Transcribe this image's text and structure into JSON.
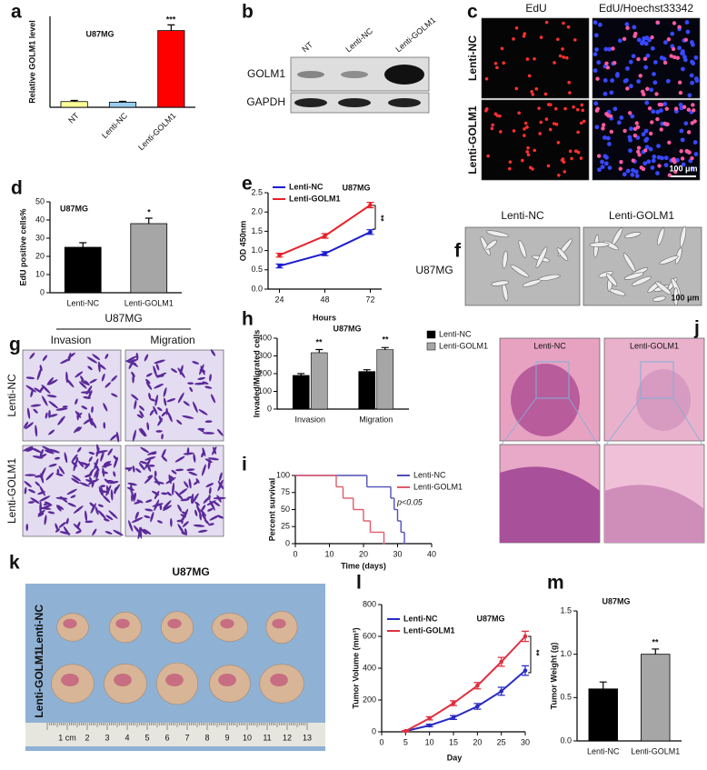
{
  "chart_data": [
    {
      "panel": "a",
      "type": "bar",
      "title": "U87MG",
      "ylabel": "Relative GOLM1 level",
      "categories": [
        "NT",
        "Lenti-NC",
        "Lenti-GOLM1"
      ],
      "values": [
        1.0,
        0.9,
        13.5
      ],
      "errors": [
        0.2,
        0.15,
        1.0
      ],
      "colors": [
        "#ffff99",
        "#99ccee",
        "#ff0000"
      ],
      "ylim": [
        0,
        16
      ],
      "annotations": [
        "***"
      ]
    },
    {
      "panel": "d",
      "type": "bar",
      "title": "U87MG",
      "ylabel": "EdU positive cells%",
      "categories": [
        "Lenti-NC",
        "Lenti-GOLM1"
      ],
      "values": [
        25,
        38
      ],
      "errors": [
        2.5,
        3
      ],
      "colors": [
        "#000000",
        "#a6a6a6"
      ],
      "ylim": [
        0,
        50
      ],
      "yticks": [
        0,
        10,
        20,
        30,
        40,
        50
      ],
      "annotations": [
        "*"
      ]
    },
    {
      "panel": "e",
      "type": "line",
      "title": "U87MG",
      "xlabel": "Hours",
      "ylabel": "OD 450nm",
      "x": [
        24,
        48,
        72
      ],
      "xlim": [
        18,
        78
      ],
      "xticks": [
        24,
        48,
        72
      ],
      "ylim": [
        0,
        2.5
      ],
      "yticks": [
        {
          "value": 0,
          "label": "0.0"
        },
        {
          "value": 0.5,
          "label": "0.5"
        },
        {
          "value": 1,
          "label": "1.0"
        },
        {
          "value": 1.5,
          "label": "1.5"
        },
        {
          "value": 2,
          "label": "2.0"
        },
        {
          "value": 2.5,
          "label": "2.5"
        }
      ],
      "series": [
        {
          "name": "Lenti-NC",
          "color": "#1a1ad0",
          "values": [
            0.6,
            0.92,
            1.48
          ],
          "errors": [
            0.05,
            0.05,
            0.06
          ]
        },
        {
          "name": "Lenti-GOLM1",
          "color": "#e8202a",
          "values": [
            0.88,
            1.38,
            2.18
          ],
          "errors": [
            0.05,
            0.06,
            0.07
          ]
        }
      ],
      "annotations": [
        "**"
      ]
    },
    {
      "panel": "h",
      "type": "bar",
      "title": "U87MG",
      "ylabel": "Invaded/Migrated cells",
      "categories": [
        "Invasion",
        "Migration"
      ],
      "ylim": [
        0,
        400
      ],
      "yticks": [
        0,
        100,
        200,
        300,
        400
      ],
      "series": [
        {
          "name": "Lenti-NC",
          "color": "#000000",
          "values": [
            190,
            212
          ],
          "errors": [
            10,
            10
          ]
        },
        {
          "name": "Lenti-GOLM1",
          "color": "#a6a6a6",
          "values": [
            318,
            335
          ],
          "errors": [
            18,
            12
          ]
        }
      ],
      "annotations": [
        "**",
        "**"
      ]
    },
    {
      "panel": "i",
      "type": "step",
      "xlabel": "Time (days)",
      "ylabel": "Percent survival",
      "xlim": [
        0,
        40
      ],
      "xticks": [
        0,
        10,
        20,
        30,
        40
      ],
      "ylim": [
        0,
        100
      ],
      "yticks": [
        0,
        25,
        50,
        75,
        100
      ],
      "series": [
        {
          "name": "Lenti-NC",
          "color": "#4f4fb8",
          "x": [
            0,
            21,
            28,
            29,
            30,
            31,
            32
          ],
          "values": [
            100,
            83.3,
            66.7,
            50,
            33.3,
            16.7,
            0
          ]
        },
        {
          "name": "Lenti-GOLM1",
          "color": "#e05a6a",
          "x": [
            0,
            12,
            14,
            17,
            20,
            22,
            26
          ],
          "values": [
            100,
            83.3,
            66.7,
            50,
            33.3,
            16.7,
            0
          ]
        }
      ],
      "annotations": [
        "p<0.05"
      ]
    },
    {
      "panel": "l",
      "type": "line",
      "title": "U87MG",
      "xlabel": "Day",
      "ylabel": "Tumor Volume (mm³)",
      "x": [
        5,
        10,
        15,
        20,
        25,
        30
      ],
      "xlim": [
        0,
        30
      ],
      "xticks": [
        0,
        5,
        10,
        15,
        20,
        25,
        30
      ],
      "ylim": [
        0,
        800
      ],
      "yticks": [
        0,
        200,
        400,
        600,
        800
      ],
      "series": [
        {
          "name": "Lenti-NC",
          "color": "#2a2ac4",
          "values": [
            5,
            40,
            90,
            160,
            255,
            385
          ],
          "errors": [
            3,
            8,
            12,
            18,
            25,
            30
          ]
        },
        {
          "name": "Lenti-GOLM1",
          "color": "#e03040",
          "values": [
            5,
            85,
            180,
            290,
            440,
            600
          ],
          "errors": [
            3,
            10,
            15,
            20,
            28,
            32
          ]
        }
      ],
      "annotations": [
        "**"
      ]
    },
    {
      "panel": "m",
      "type": "bar",
      "title": "U87MG",
      "ylabel": "Tumor Weight (g)",
      "categories": [
        "Lenti-NC",
        "Lenti-GOLM1"
      ],
      "values": [
        0.6,
        1.0
      ],
      "errors": [
        0.08,
        0.06
      ],
      "colors": [
        "#000000",
        "#a6a6a6"
      ],
      "ylim": [
        0,
        1.5
      ],
      "yticks": [
        {
          "value": 0,
          "label": "0.0"
        },
        {
          "value": 0.5,
          "label": "0.5"
        },
        {
          "value": 1,
          "label": "1.0"
        },
        {
          "value": 1.5,
          "label": "1.5"
        }
      ],
      "annotations": [
        "**"
      ]
    }
  ],
  "panels": {
    "b": {
      "letter": "b",
      "lanes": [
        "NT",
        "Lenti-NC",
        "Lenti-GOLM1"
      ],
      "bands": [
        "GOLM1",
        "GAPDH"
      ]
    },
    "c": {
      "letter": "c",
      "columns": [
        "EdU",
        "EdU/Hoechst33342"
      ],
      "rows": [
        "Lenti-NC",
        "Lenti-GOLM1"
      ],
      "scale_bar": "100 μm"
    },
    "f": {
      "letter": "f",
      "columns": [
        "Lenti-NC",
        "Lenti-GOLM1"
      ],
      "row": "U87MG",
      "scale_bar": "100 μm"
    },
    "g": {
      "letter": "g",
      "title": "U87MG",
      "columns": [
        "Invasion",
        "Migration"
      ],
      "rows": [
        "Lenti-NC",
        "Lenti-GOLM1"
      ]
    },
    "j": {
      "letter": "j",
      "columns": [
        "Lenti-NC",
        "Lenti-GOLM1"
      ]
    },
    "k": {
      "letter": "k",
      "title": "U87MG",
      "rows": [
        "Lenti-NC",
        "Lenti-GOLM1"
      ],
      "ruler": [
        "1 cm",
        "2",
        "3",
        "4",
        "5",
        "6",
        "7",
        "8",
        "9",
        "10",
        "11",
        "12",
        "13"
      ]
    }
  }
}
